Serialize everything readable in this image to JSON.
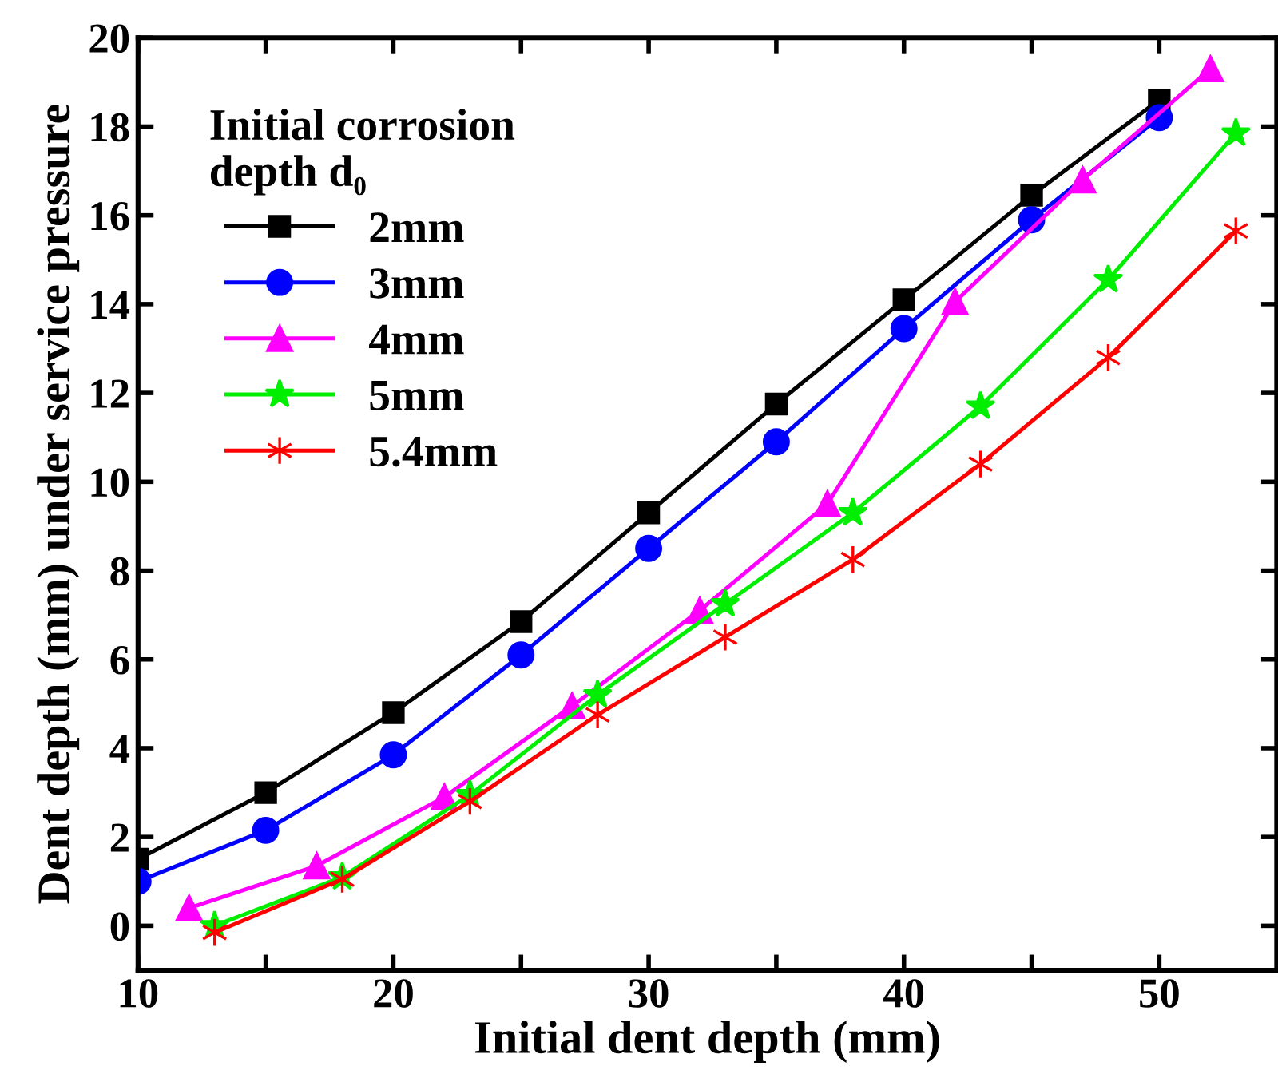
{
  "chart_data": {
    "type": "line",
    "xlabel": "Initial dent depth (mm)",
    "ylabel": "Dent depth (mm) under service pressure",
    "legend_title": "Initial corrosion\ndepth d₀",
    "legend": "top left",
    "grid": false,
    "xlim": [
      10,
      54.6
    ],
    "xticks": [
      10,
      {
        "value": 15,
        "label": null
      },
      20,
      {
        "value": 25,
        "label": null
      },
      30,
      {
        "value": 35,
        "label": null
      },
      40,
      {
        "value": 45,
        "label": null
      },
      50
    ],
    "ylim": [
      -1,
      20
    ],
    "yticks": [
      0,
      2,
      4,
      6,
      8,
      10,
      12,
      14,
      16,
      18,
      20
    ],
    "series": [
      {
        "name": "2mm",
        "color": "#000000",
        "marker": "square",
        "x": [
          10,
          15,
          20,
          25,
          30,
          35,
          40,
          45,
          50
        ],
        "values": [
          1.5,
          3.0,
          4.8,
          6.85,
          9.3,
          11.75,
          14.1,
          16.45,
          18.6
        ]
      },
      {
        "name": "3mm",
        "color": "#0000ff",
        "marker": "circle",
        "x": [
          10,
          15,
          20,
          25,
          30,
          35,
          40,
          45,
          50
        ],
        "values": [
          1.0,
          2.15,
          3.85,
          6.1,
          8.5,
          10.9,
          13.45,
          15.9,
          18.2
        ]
      },
      {
        "name": "4mm",
        "color": "#ff00ff",
        "marker": "triangle",
        "x": [
          12,
          17,
          22,
          27,
          32,
          37,
          42,
          47,
          52
        ],
        "values": [
          0.4,
          1.35,
          2.9,
          4.95,
          7.1,
          9.5,
          14.05,
          16.8,
          19.3
        ]
      },
      {
        "name": "5mm",
        "color": "#00ee00",
        "marker": "star",
        "x": [
          13,
          18,
          23,
          28,
          33,
          38,
          43,
          48,
          53
        ],
        "values": [
          0.0,
          1.1,
          2.95,
          5.2,
          7.25,
          9.3,
          11.7,
          14.55,
          17.85
        ]
      },
      {
        "name": "5.4mm",
        "color": "#ff0000",
        "marker": "cross",
        "x": [
          13,
          18,
          23,
          28,
          33,
          38,
          43,
          48,
          53
        ],
        "values": [
          -0.15,
          1.05,
          2.8,
          4.75,
          6.5,
          8.25,
          10.4,
          12.8,
          15.65
        ]
      }
    ]
  }
}
